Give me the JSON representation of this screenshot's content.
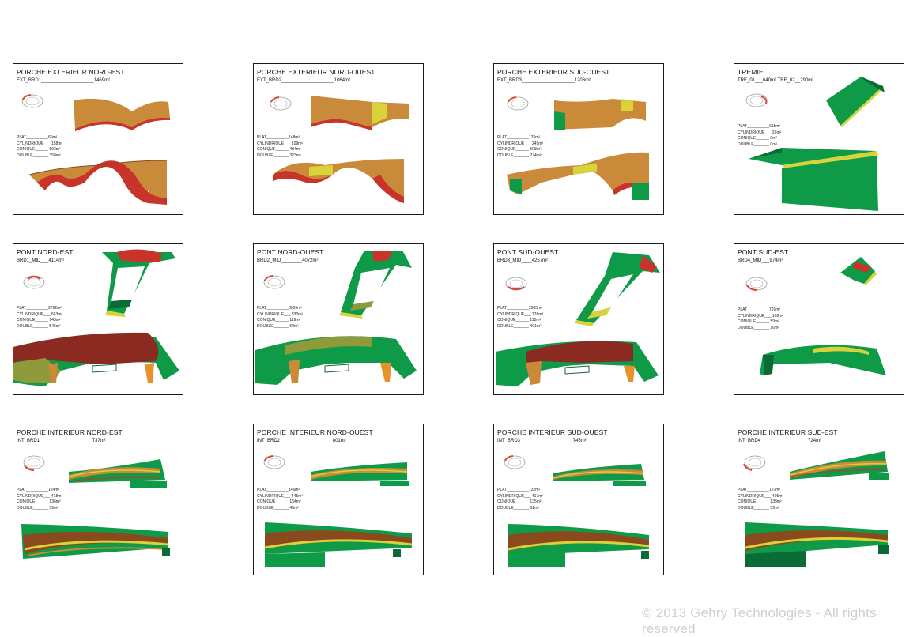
{
  "colors": {
    "orange": "#c98a3a",
    "brown": "#8a4a1e",
    "red": "#c8332a",
    "green": "#0f9a48",
    "darkgreen": "#0a6b34",
    "yellow": "#d9d23a",
    "olive": "#8f9a3a",
    "maroon": "#8a2a20"
  },
  "panels": [
    {
      "title": "PORCHE EXTERIEUR NORD-EST",
      "sub": "EXT_BRD1____________________1469m²",
      "stats": [
        "PLAT__________60m²",
        "CYLINDRIQUE___ 158m²",
        "CONIQUE______ 893m²",
        "DOUBLE_______ 358m²"
      ],
      "palette": "orange"
    },
    {
      "title": "PORCHE EXTERIEUR NORD-OUEST",
      "sub": "EXT_BRD2____________________1064m²",
      "stats": [
        "PLAT__________148m²",
        "CYLINDRIQUE___ 109m²",
        "CONIQUE______ 484m²",
        "DOUBLE_______ 323m²"
      ],
      "palette": "orange-y"
    },
    {
      "title": "PORCHE EXTERIEUR SUD-OUEST",
      "sub": "EXT_BRD3____________________1206m²",
      "stats": [
        "PLAT__________175m²",
        "CYLINDRIQUE___ 249m²",
        "CONIQUE______ 508m²",
        "DOUBLE_______ 274m²"
      ],
      "palette": "orange-g"
    },
    {
      "title": "TREMIE",
      "sub": "TRE_01___640m²    TRE_02__290m²",
      "stats": [
        "PLAT__________615m²",
        "CYLINDRIQUE___ 25m²",
        "CONIQUE______ 0m²",
        "DOUBLE_______ 0m²"
      ],
      "palette": "tremie"
    },
    {
      "title": "PONT NORD-EST",
      "sub": "BRD1_MID___4114m²",
      "stats": [
        "PLAT__________2762m²",
        "CYLINDRIQUE___ 663m²",
        "CONIQUE______ 143m²",
        "DOUBLE_______ 546m²"
      ],
      "palette": "pont"
    },
    {
      "title": "PONT NORD-OUEST",
      "sub": " BRD2_MID________4072m²",
      "stats": [
        "PLAT__________3059m²",
        "CYLINDRIQUE___ 830m²",
        "CONIQUE______ 119m²",
        "DOUBLE_______ 64m²"
      ],
      "palette": "pont-g"
    },
    {
      "title": "PONT SUD-OUEST",
      "sub": "BRD3_MID____4257m²",
      "stats": [
        "PLAT__________2965m²",
        "CYLINDRIQUE___ 776m²",
        "CONIQUE______ 115m²",
        "DOUBLE_______ 401m²"
      ],
      "palette": "pont"
    },
    {
      "title": "PONT SUD-EST",
      "sub": "BRD4_MID___974m²",
      "stats": [
        "PLAT__________791m²",
        "CYLINDRIQUE___ 108m²",
        "CONIQUE______ 59m²",
        "DOUBLE_______ 16m²"
      ],
      "palette": "pont-se"
    },
    {
      "title": "PORCHE INTERIEUR NORD-EST",
      "sub": "INT_BRD1____________________737m²",
      "stats": [
        "PLAT__________124m²",
        "CYLINDRIQUE___ 418m²",
        "CONIQUE______ 136m²",
        "DOUBLE_______ 59m²"
      ],
      "palette": "int"
    },
    {
      "title": "PORCHE INTERIEUR NORD-OUEST",
      "sub": "INT_BRD2____________________801m²",
      "stats": [
        "PLAT__________146m²",
        "CYLINDRIQUE___ 445m²",
        "CONIQUE______ 164m²",
        "DOUBLE_______ 46m²"
      ],
      "palette": "int"
    },
    {
      "title": "PORCHE INTERIEUR SUD-OUEST",
      "sub": "INT_BRD3____________________745m²",
      "stats": [
        "PLAT__________132m²",
        "CYLINDRIQUE___ 417m²",
        "CONIQUE______ 135m²",
        "DOUBLE_______ 61m²"
      ],
      "palette": "int"
    },
    {
      "title": "PORCHE INTERIEUR SUD-EST",
      "sub": "INT_BRD4__________________724m²",
      "stats": [
        "PLAT__________127m²",
        "CYLINDRIQUE___ 405m²",
        "CONIQUE______ 133m²",
        "DOUBLE_______ 59m²"
      ],
      "palette": "int"
    }
  ],
  "copyright": "© 2013 Gehry Technologies - All rights reserved"
}
